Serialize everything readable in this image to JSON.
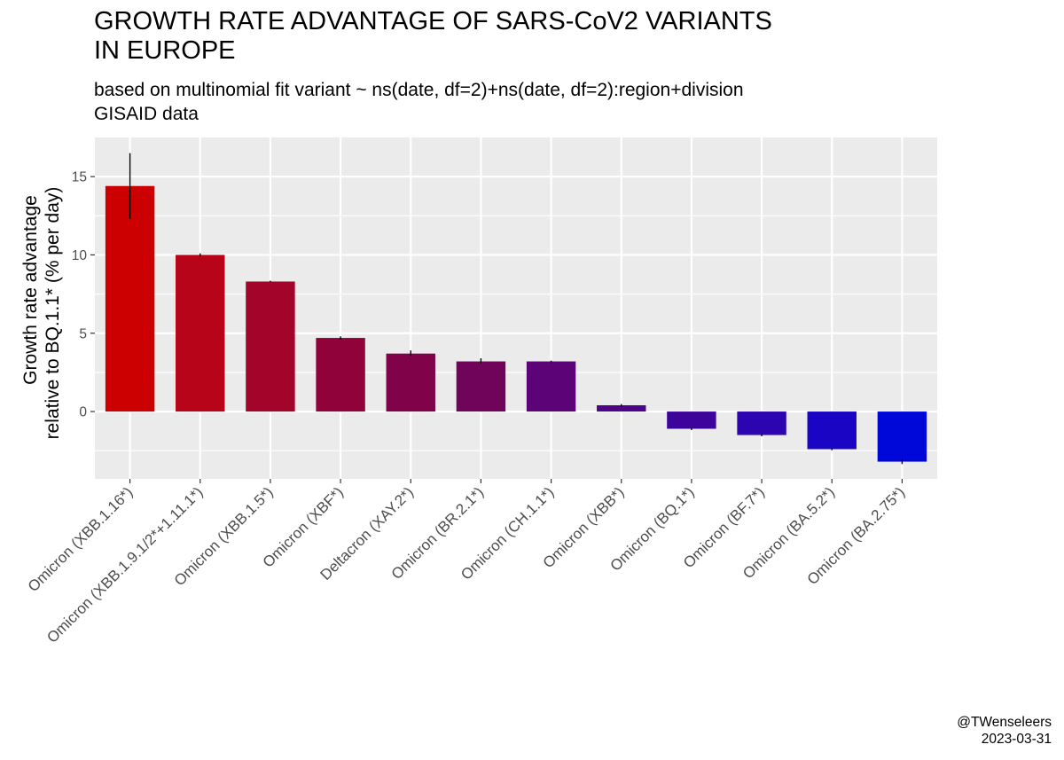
{
  "title_lines": [
    "GROWTH RATE ADVANTAGE OF SARS-CoV2 VARIANTS",
    "IN EUROPE"
  ],
  "subtitle_lines": [
    "based on multinomial fit variant ~ ns(date, df=2)+ns(date, df=2):region+division",
    "GISAID data"
  ],
  "caption_lines": [
    "@TWenseleers",
    "2023-03-31"
  ],
  "chart_data": {
    "type": "bar",
    "title": "GROWTH RATE ADVANTAGE OF SARS-CoV2 VARIANTS IN EUROPE",
    "subtitle": "based on multinomial fit variant ~ ns(date, df=2)+ns(date, df=2):region+division GISAID data",
    "xlabel": "",
    "ylabel_lines": [
      "Growth rate advantage",
      "relative to BQ.1.1* (% per day)"
    ],
    "ylim": [
      -4.3,
      17.5
    ],
    "yticks": [
      0,
      5,
      10,
      15
    ],
    "grid": true,
    "legend": "none",
    "categories": [
      "Omicron (XBB.1.16*)",
      "Omicron (XBB.1.9.1/2*+1.11.1*)",
      "Omicron (XBB.1.5*)",
      "Omicron (XBF*)",
      "Deltacron (XAY.2*)",
      "Omicron (BR.2.1*)",
      "Omicron (CH.1.1*)",
      "Omicron (XBB*)",
      "Omicron (BQ.1*)",
      "Omicron (BF.7*)",
      "Omicron (BA.5.2*)",
      "Omicron (BA.2.75*)"
    ],
    "values": [
      14.4,
      10.0,
      8.3,
      4.7,
      3.7,
      3.2,
      3.2,
      0.4,
      -1.1,
      -1.5,
      -2.4,
      -3.2
    ],
    "error_low": [
      12.3,
      9.9,
      8.27,
      4.6,
      3.55,
      3.05,
      3.15,
      0.32,
      -1.18,
      -1.58,
      -2.47,
      -3.35
    ],
    "error_high": [
      16.5,
      10.1,
      8.35,
      4.8,
      3.9,
      3.4,
      3.25,
      0.48,
      -1.02,
      -1.42,
      -2.33,
      -3.05
    ],
    "colors": [
      "#cc0000",
      "#b80418",
      "#a3042a",
      "#90033a",
      "#80034a",
      "#70045a",
      "#5c0477",
      "#4d0489",
      "#3d049c",
      "#2c04b0",
      "#1a05c4",
      "#0007d9"
    ]
  }
}
